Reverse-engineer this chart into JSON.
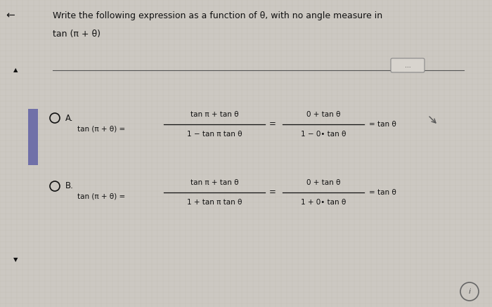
{
  "bg_color": "#ccc8c2",
  "title_text": "Write the following expression as a function of θ, with no angle measure in",
  "subtitle_text": "tan (π + θ)",
  "dots_button": "...",
  "circle_label": "i",
  "grid_color": "#bab5ae",
  "sidebar_color": "#7070a8",
  "arrow_color": "#333333",
  "text_color": "#111111",
  "frac_color": "#111111",
  "title_fontsize": 9.0,
  "subtitle_fontsize": 9.0,
  "body_fontsize": 7.5,
  "label_fontsize": 8.5
}
